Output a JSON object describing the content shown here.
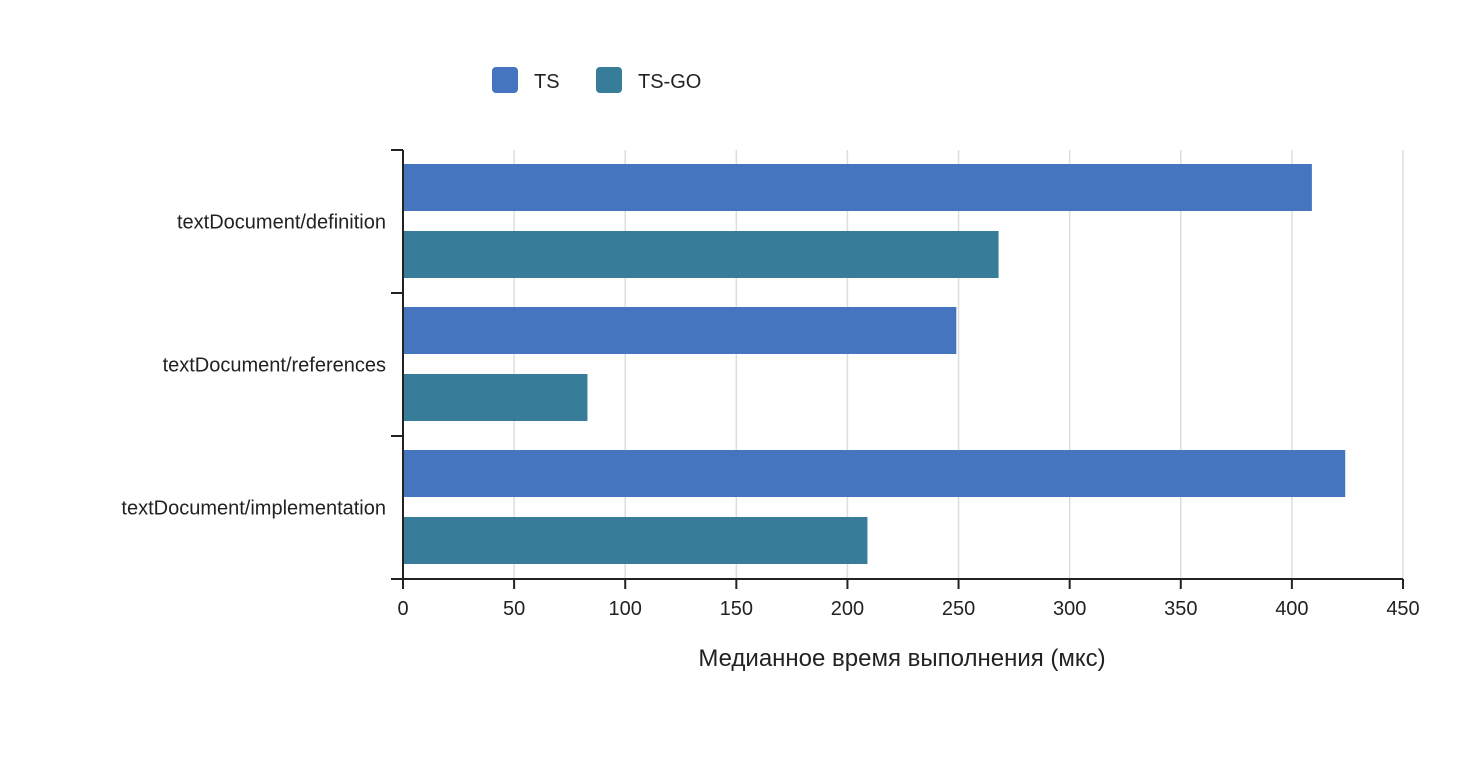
{
  "chart_data": {
    "type": "bar",
    "orientation": "horizontal",
    "categories": [
      "textDocument/definition",
      "textDocument/references",
      "textDocument/implementation"
    ],
    "series": [
      {
        "name": "TS",
        "color": "#4575bf",
        "values": [
          409,
          249,
          424
        ]
      },
      {
        "name": "TS-GO",
        "color": "#377c98",
        "values": [
          268,
          83,
          209
        ]
      }
    ],
    "xlabel": "Медианное время выполнения (мкс)",
    "ylabel": "",
    "xlim": [
      0,
      450
    ],
    "xticks": [
      0,
      50,
      100,
      150,
      200,
      250,
      300,
      350,
      400,
      450
    ],
    "xtick_labels": [
      "0",
      "50",
      "100",
      "150",
      "200",
      "250",
      "300",
      "350",
      "400",
      "450"
    ],
    "grid": "vertical",
    "legend_position": "top"
  }
}
